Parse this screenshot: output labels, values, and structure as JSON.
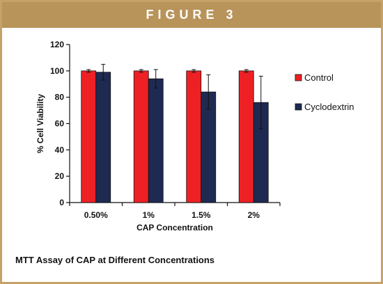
{
  "figure": {
    "banner": "FIGURE 3",
    "caption": "MTT Assay of CAP at Different Concentrations"
  },
  "colors": {
    "frame": "#c7a268",
    "banner_bg": "#b8935a",
    "control": "#ee2024",
    "cyclodextrin": "#1f2a52"
  },
  "chart_data": {
    "type": "bar",
    "title": "",
    "xlabel": "CAP Concentration",
    "ylabel": "% Cell Viability",
    "categories": [
      "0.50%",
      "1%",
      "1.5%",
      "2%"
    ],
    "ylim": [
      0,
      120
    ],
    "yticks": [
      0,
      20,
      40,
      60,
      80,
      100,
      120
    ],
    "grid": false,
    "legend_position": "right",
    "series": [
      {
        "name": "Control",
        "color": "#ee2024",
        "values": [
          100,
          100,
          100,
          100
        ],
        "errors": [
          1,
          1,
          1,
          1
        ]
      },
      {
        "name": "Cyclodextrin",
        "color": "#1f2a52",
        "values": [
          99,
          94,
          84,
          76
        ],
        "errors": [
          6,
          7,
          13,
          20
        ]
      }
    ]
  }
}
